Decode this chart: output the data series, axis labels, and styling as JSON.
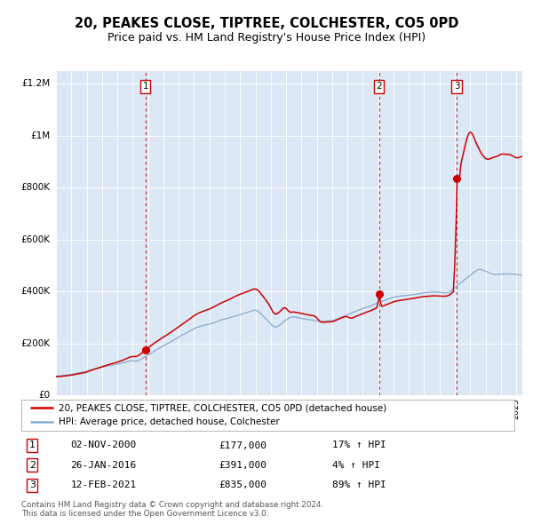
{
  "title": "20, PEAKES CLOSE, TIPTREE, COLCHESTER, CO5 0PD",
  "subtitle": "Price paid vs. HM Land Registry's House Price Index (HPI)",
  "title_fontsize": 10.5,
  "subtitle_fontsize": 9,
  "background_color": "#dce8f5",
  "fig_color": "#ffffff",
  "ylim": [
    0,
    1250000
  ],
  "xlim_start": 1995.0,
  "xlim_end": 2025.4,
  "sale_dates": [
    2000.84,
    2016.07,
    2021.12
  ],
  "sale_prices": [
    177000,
    391000,
    835000
  ],
  "sale_labels": [
    "1",
    "2",
    "3"
  ],
  "legend_line1": "20, PEAKES CLOSE, TIPTREE, COLCHESTER, CO5 0PD (detached house)",
  "legend_line2": "HPI: Average price, detached house, Colchester",
  "table_data": [
    [
      "1",
      "02-NOV-2000",
      "£177,000",
      "17% ↑ HPI"
    ],
    [
      "2",
      "26-JAN-2016",
      "£391,000",
      "4% ↑ HPI"
    ],
    [
      "3",
      "12-FEB-2021",
      "£835,000",
      "89% ↑ HPI"
    ]
  ],
  "footer": "Contains HM Land Registry data © Crown copyright and database right 2024.\nThis data is licensed under the Open Government Licence v3.0.",
  "red_line_color": "#cc0000",
  "blue_line_color": "#88aacc",
  "dashed_line_color": "#cc0000",
  "marker_color": "#cc0000",
  "grid_color": "#ffffff",
  "ytick_labels": [
    "£0",
    "£200K",
    "£400K",
    "£600K",
    "£800K",
    "£1M",
    "£1.2M"
  ],
  "ytick_values": [
    0,
    200000,
    400000,
    600000,
    800000,
    1000000,
    1200000
  ]
}
